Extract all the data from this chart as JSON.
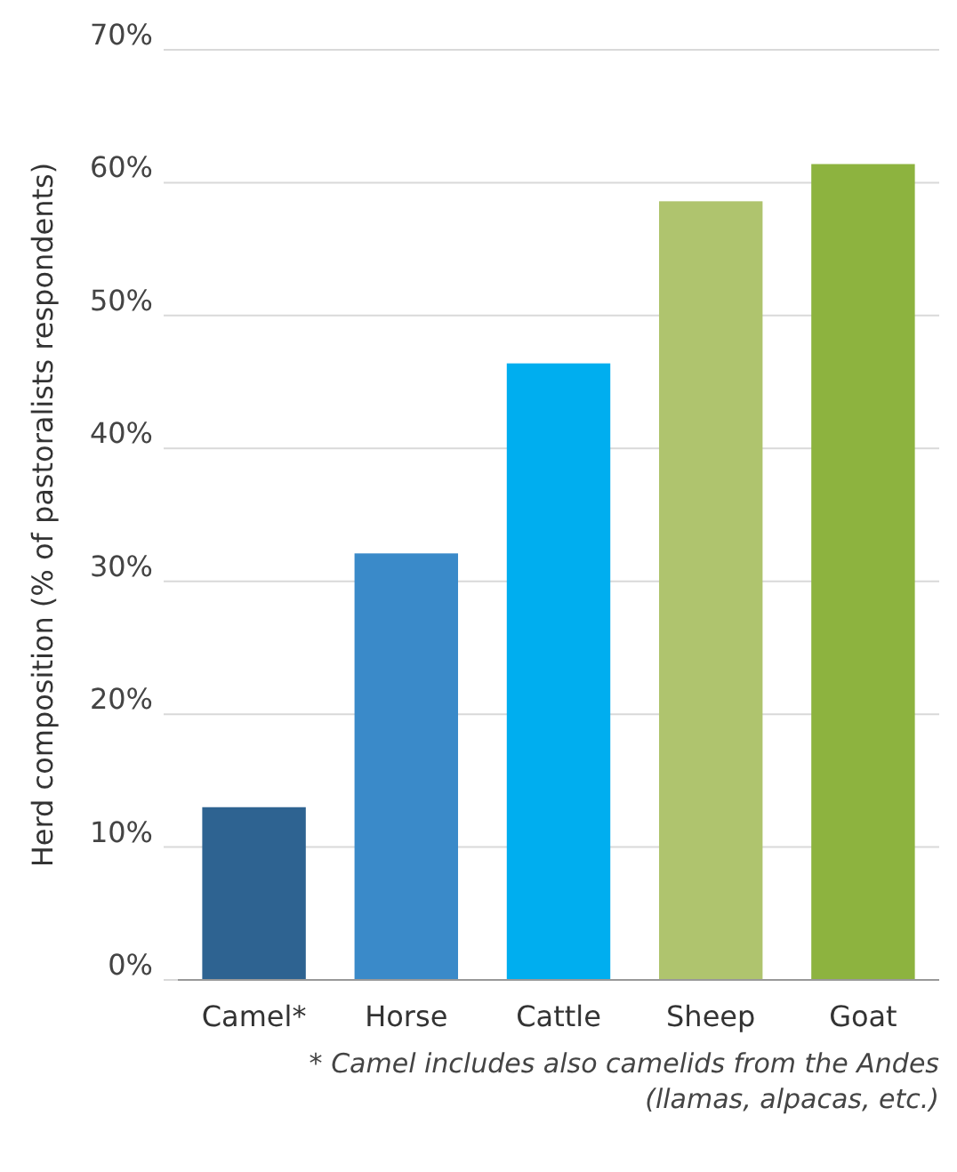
{
  "chart_data": {
    "type": "bar",
    "ylabel": "Herd composition (% of pastoralists respondents)",
    "categories": [
      "Camel*",
      "Horse",
      "Cattle",
      "Sheep",
      "Goat"
    ],
    "values": [
      13,
      32.1,
      46.4,
      58.6,
      61.4
    ],
    "colors": [
      "#2e6391",
      "#3a8ac9",
      "#00aeef",
      "#afc46e",
      "#8db33f"
    ],
    "ylim": [
      0,
      70
    ],
    "yticks": [
      {
        "value": 0,
        "label": "0%"
      },
      {
        "value": 10,
        "label": "10%"
      },
      {
        "value": 20,
        "label": "20%"
      },
      {
        "value": 30,
        "label": "30%"
      },
      {
        "value": 40,
        "label": "40%"
      },
      {
        "value": 50,
        "label": "50%"
      },
      {
        "value": 60,
        "label": "60%"
      },
      {
        "value": 70,
        "label": "70%"
      }
    ],
    "grid": "y",
    "annotations": [
      "* Camel includes also camelids from the Andes (llamas, alpacas, etc.)"
    ]
  }
}
